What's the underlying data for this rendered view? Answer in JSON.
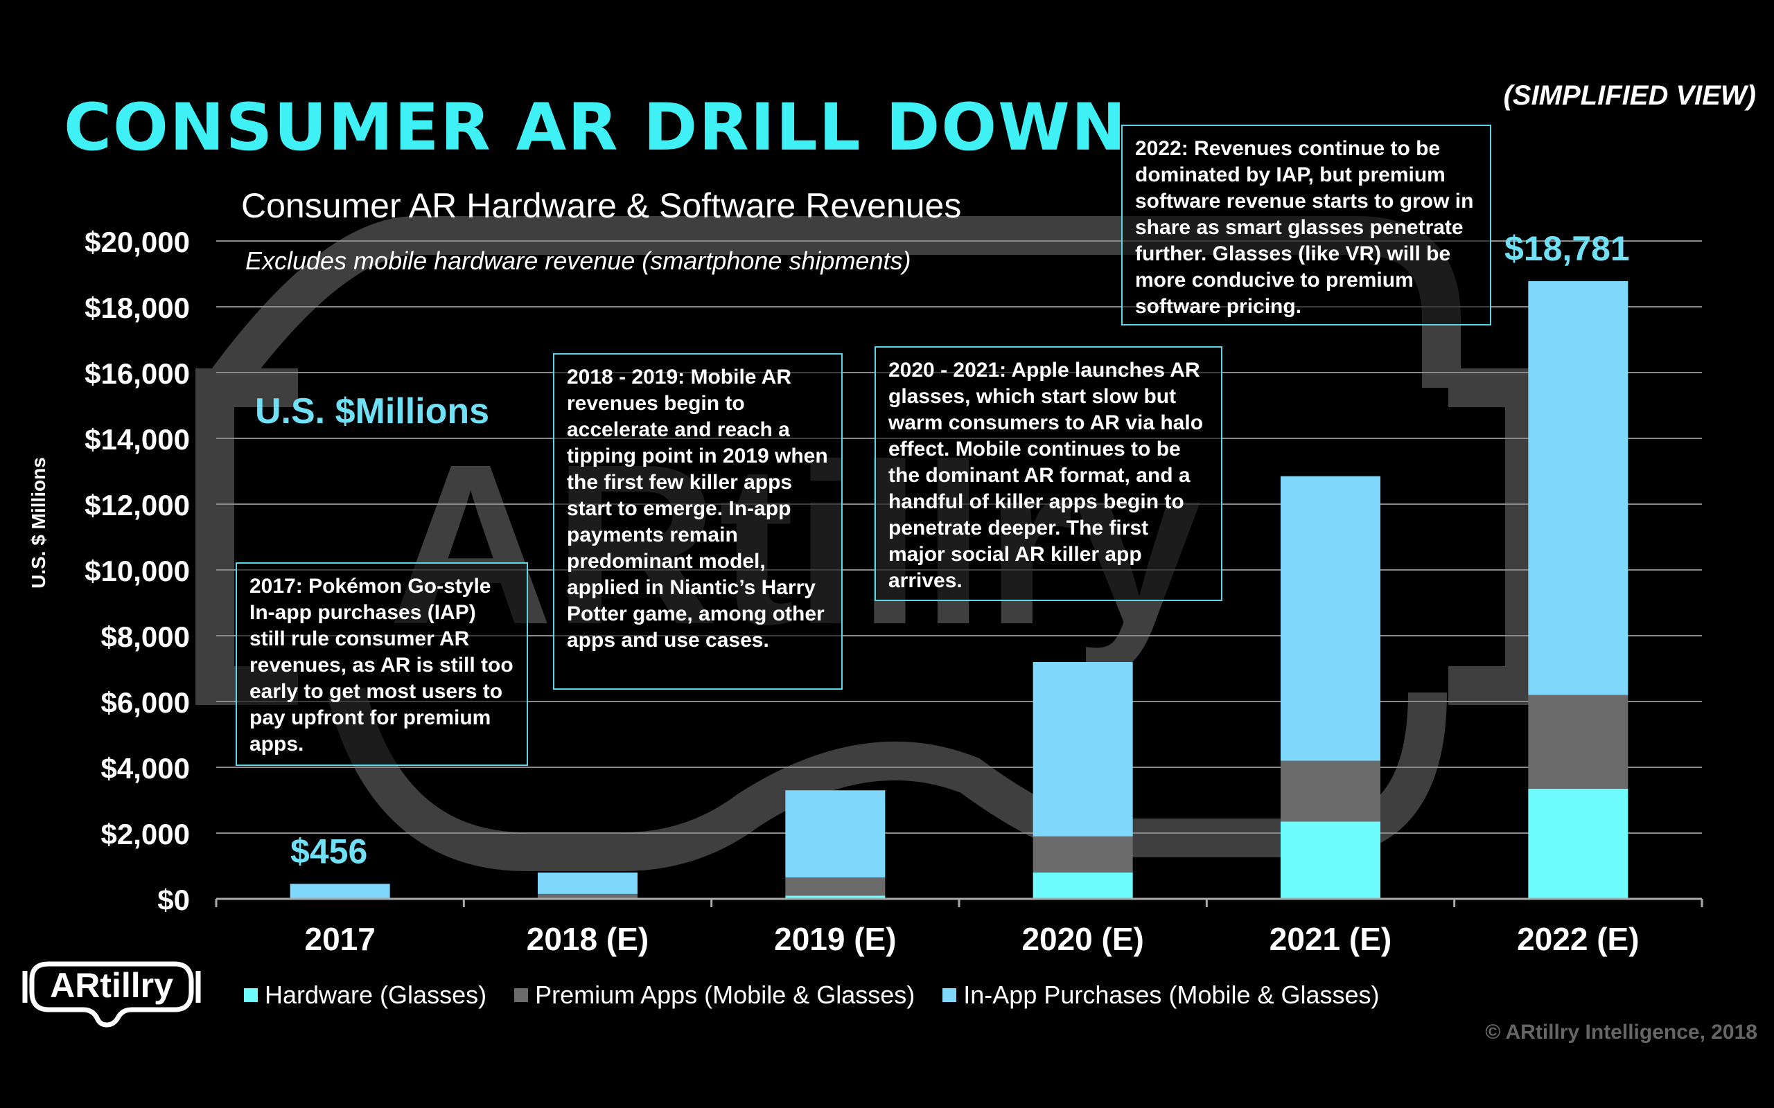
{
  "title": "CONSUMER AR DRILL DOWN",
  "view_note": "(SIMPLIFIED VIEW)",
  "units_label": "U.S. $Millions",
  "notes": [
    "2017: Pokémon Go-style In-app purchases (IAP) still rule consumer AR revenues, as AR is still too early to get most users to pay upfront for premium apps.",
    "2018 - 2019: Mobile AR revenues begin to accelerate and reach a tipping point in 2019 when the first few killer apps start to emerge. In-app payments remain predominant model, applied in Niantic’s Harry Potter game, among other apps and use cases.",
    "2020 - 2021: Apple launches AR glasses, which start slow but warm consumers to AR via halo effect. Mobile continues to be the dominant AR format, and a handful of killer apps begin to penetrate deeper. The first major social AR killer app arrives.",
    "2022: Revenues continue to be dominated by IAP, but premium software revenue starts to grow in share as smart glasses penetrate further. Glasses (like VR) will be more conducive to premium software pricing."
  ],
  "logo_text": "ARtillry",
  "watermark_text": "ARtillry",
  "copyright": "© ARtillry Intelligence, 2018",
  "colors": {
    "background": "#000000",
    "title": "#3ff0f5",
    "hardware": "#6ffcff",
    "premium": "#6b6b6b",
    "iap": "#7fd8fb",
    "total_label": "#6fe0f5",
    "note_border": "#5ad8e8",
    "grid": "#8a8a8a"
  },
  "chart_data": {
    "type": "bar",
    "stacked": true,
    "title": "Consumer AR Hardware & Software Revenues",
    "subtitle": "Excludes mobile hardware revenue (smartphone shipments)",
    "xlabel": "",
    "ylabel": "U.S. $ Millions",
    "categories": [
      "2017",
      "2018 (E)",
      "2019 (E)",
      "2020 (E)",
      "2021 (E)",
      "2022 (E)"
    ],
    "series": [
      {
        "name": "Hardware (Glasses)",
        "color": "#6ffcff",
        "values": [
          0,
          0,
          100,
          800,
          2350,
          3350
        ]
      },
      {
        "name": "Premium Apps (Mobile & Glasses)",
        "color": "#6b6b6b",
        "values": [
          30,
          150,
          550,
          1100,
          1850,
          2850
        ]
      },
      {
        "name": "In-App Purchases (Mobile & Glasses)",
        "color": "#7fd8fb",
        "values": [
          426,
          650,
          2650,
          5300,
          8650,
          12581
        ]
      }
    ],
    "total_labels": [
      {
        "category": "2017",
        "text": "$456"
      },
      {
        "category": "2022 (E)",
        "text": "$18,781"
      }
    ],
    "ylim": [
      0,
      20000
    ],
    "yticks": [
      0,
      2000,
      4000,
      6000,
      8000,
      10000,
      12000,
      14000,
      16000,
      18000,
      20000
    ],
    "ytick_labels": [
      "$0",
      "$2,000",
      "$4,000",
      "$6,000",
      "$8,000",
      "$10,000",
      "$12,000",
      "$14,000",
      "$16,000",
      "$18,000",
      "$20,000"
    ],
    "grid": true,
    "legend_position": "bottom"
  }
}
